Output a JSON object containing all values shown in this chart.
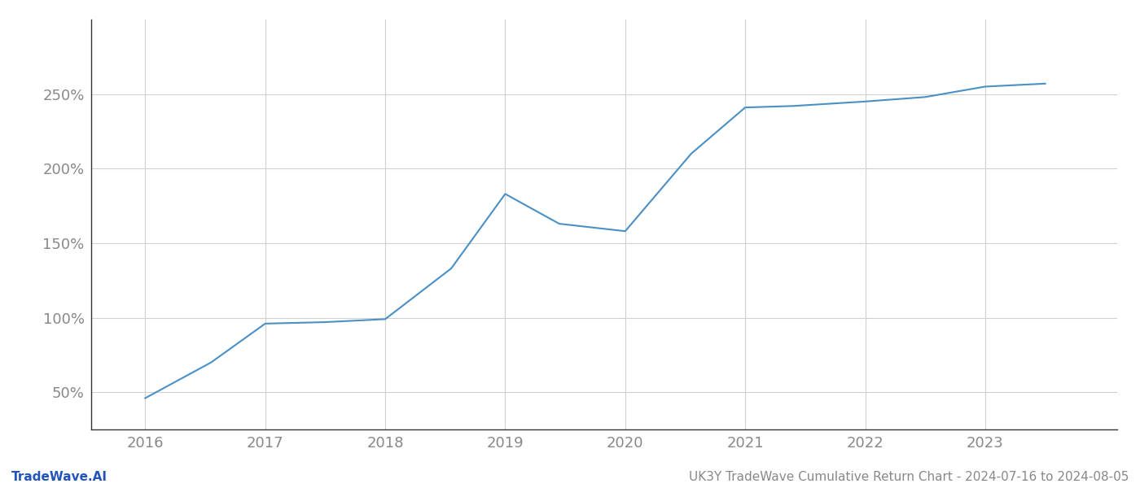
{
  "x_values": [
    2016,
    2016.55,
    2017,
    2017.5,
    2018,
    2018.55,
    2019,
    2019.45,
    2020,
    2020.55,
    2021,
    2021.4,
    2022,
    2022.5,
    2023,
    2023.5
  ],
  "y_values": [
    46,
    70,
    96,
    97,
    99,
    133,
    183,
    163,
    158,
    210,
    241,
    242,
    245,
    248,
    255,
    257
  ],
  "line_color": "#4a90c4",
  "line_width": 1.5,
  "footer_left": "TradeWave.AI",
  "footer_right": "UK3Y TradeWave Cumulative Return Chart - 2024-07-16 to 2024-08-05",
  "yticks": [
    50,
    100,
    150,
    200,
    250
  ],
  "ylim": [
    25,
    300
  ],
  "xlim": [
    2015.55,
    2024.1
  ],
  "xticks": [
    2016,
    2017,
    2018,
    2019,
    2020,
    2021,
    2022,
    2023
  ],
  "bg_color": "#ffffff",
  "grid_color": "#d0d0d0",
  "tick_label_color": "#888888",
  "footer_left_color": "#2255bb",
  "footer_right_color": "#888888",
  "tick_fontsize": 13,
  "footer_fontsize": 11
}
